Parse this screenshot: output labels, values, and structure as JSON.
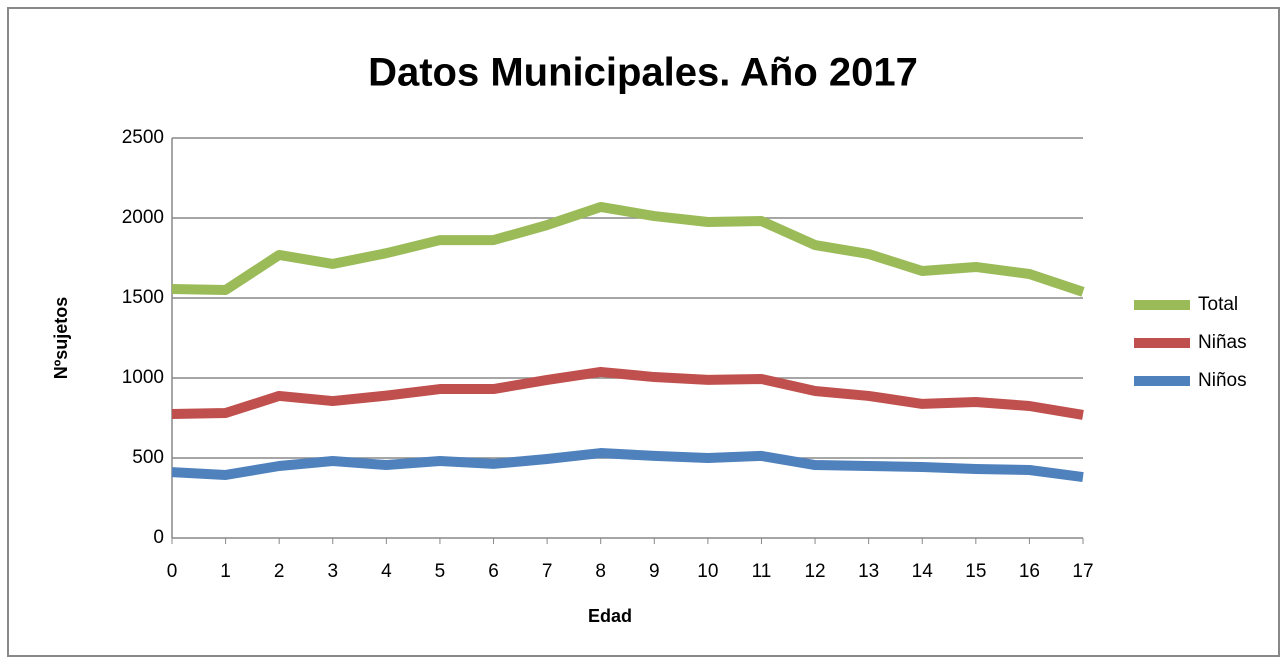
{
  "chart_data": {
    "type": "line",
    "title": "Datos Municipales. Año 2017",
    "x_label": "Edad",
    "y_label": "Nºsujetos",
    "x": [
      0,
      1,
      2,
      3,
      4,
      5,
      6,
      7,
      8,
      9,
      10,
      11,
      12,
      13,
      14,
      15,
      16,
      17
    ],
    "xlim": [
      0,
      17
    ],
    "xticks": [
      0,
      1,
      2,
      3,
      4,
      5,
      6,
      7,
      8,
      9,
      10,
      11,
      12,
      13,
      14,
      15,
      16,
      17
    ],
    "ylim": [
      0,
      2500
    ],
    "yticks": [
      0,
      500,
      1000,
      1500,
      2000,
      2500
    ],
    "grid": true,
    "legend": "right",
    "series": [
      {
        "name": "Total",
        "color": "#9bbb59",
        "values": [
          1556,
          1550,
          1769,
          1713,
          1780,
          1862,
          1862,
          1956,
          2069,
          2012,
          1975,
          1981,
          1831,
          1775,
          1669,
          1694,
          1650,
          1538
        ]
      },
      {
        "name": "Niñas",
        "color": "#c0504d",
        "values": [
          775,
          781,
          888,
          856,
          890,
          931,
          931,
          988,
          1038,
          1006,
          988,
          994,
          919,
          888,
          838,
          850,
          825,
          769
        ]
      },
      {
        "name": "Niños",
        "color": "#4f81bd",
        "values": [
          412,
          394,
          450,
          481,
          456,
          481,
          463,
          494,
          531,
          513,
          500,
          513,
          456,
          450,
          444,
          431,
          425,
          381
        ]
      }
    ]
  }
}
